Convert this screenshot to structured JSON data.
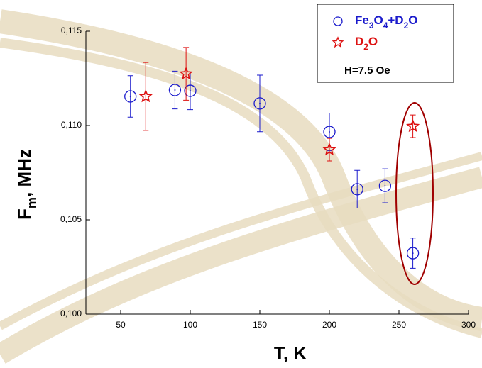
{
  "chart_data": {
    "type": "scatter",
    "x_label": "T, K",
    "y_label": "Fm, MHz",
    "annotation": "H=7.5 Oe",
    "xlim": [
      25,
      300
    ],
    "xticks": [
      50,
      100,
      150,
      200,
      250,
      300
    ],
    "ylim": [
      0.1,
      0.115
    ],
    "yticks": [
      {
        "value": 0.1,
        "label": "0,100"
      },
      {
        "value": 0.105,
        "label": "0,105"
      },
      {
        "value": 0.11,
        "label": "0,110"
      },
      {
        "value": 0.115,
        "label": "0,115"
      }
    ],
    "series": [
      {
        "name": "Fe3O4+D2O",
        "color": "#1a1acc",
        "marker": "circle",
        "x": [
          57,
          89,
          100,
          150,
          200,
          220,
          240,
          260
        ],
        "values": [
          0.11154,
          0.11188,
          0.11184,
          0.11117,
          0.10966,
          0.10662,
          0.1068,
          0.10323
        ],
        "errors": [
          0.0011,
          0.001,
          0.001,
          0.0015,
          0.001,
          0.001,
          0.0009,
          0.0008
        ]
      },
      {
        "name": "D2O",
        "color": "#dd1111",
        "marker": "star",
        "x": [
          68,
          97,
          200,
          260
        ],
        "values": [
          0.11154,
          0.11274,
          0.10872,
          0.10996
        ],
        "errors": [
          0.0018,
          0.0014,
          0.0006,
          0.0006
        ]
      }
    ]
  }
}
